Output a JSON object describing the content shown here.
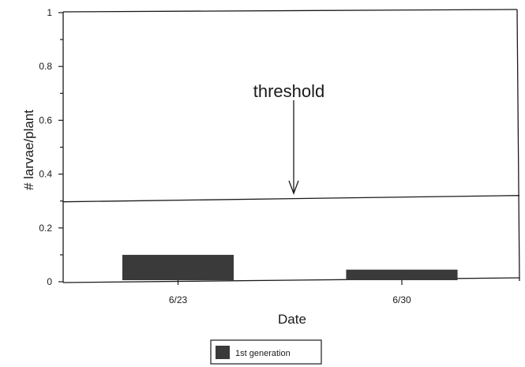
{
  "chart_data": {
    "type": "bar",
    "xlabel": "Date",
    "ylabel": "# larvae/plant",
    "categories": [
      "6/23",
      "6/30"
    ],
    "series": [
      {
        "name": "1st generation",
        "values": [
          0.1,
          0.045
        ],
        "color": "#3a3a3a"
      }
    ],
    "ylim": [
      0,
      1
    ],
    "yticks": [
      0,
      0.2,
      0.4,
      0.6,
      0.8,
      1
    ],
    "ytick_labels": [
      "0",
      "0.2",
      "0.4",
      "0.6",
      "0.8",
      "1"
    ],
    "reference_line": {
      "value": 0.3
    },
    "annotation": {
      "text": "threshold",
      "arrow": "down"
    },
    "grid": false,
    "legend_position": "bottom-center"
  }
}
